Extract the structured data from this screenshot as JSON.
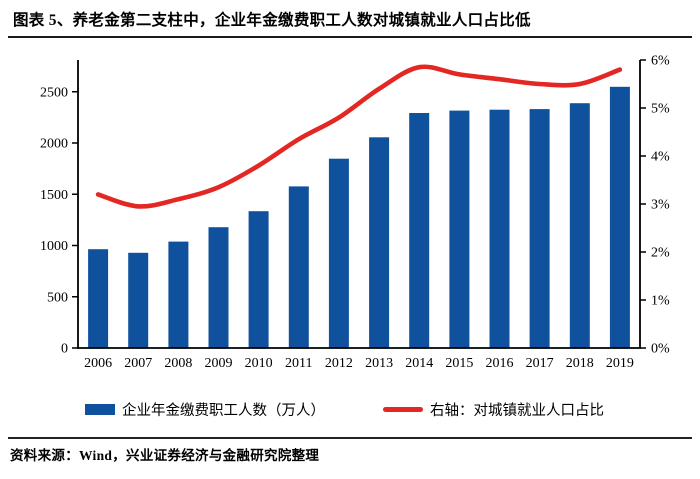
{
  "title": "图表 5、养老金第二支柱中，企业年金缴费职工人数对城镇就业人口占比低",
  "source": "资料来源：Wind，兴业证券经济与金融研究院整理",
  "legend": {
    "bar_label": "企业年金缴费职工人数（万人）",
    "line_label": "右轴：对城镇就业人口占比"
  },
  "colors": {
    "bar": "#10519E",
    "line": "#E32823",
    "axis": "#000000",
    "text": "#000000"
  },
  "chart_data": {
    "type": "bar",
    "subtype": "bar-line-combo",
    "categories": [
      "2006",
      "2007",
      "2008",
      "2009",
      "2010",
      "2011",
      "2012",
      "2013",
      "2014",
      "2015",
      "2016",
      "2017",
      "2018",
      "2019"
    ],
    "series": [
      {
        "name": "企业年金缴费职工人数（万人）",
        "type": "bar",
        "axis": "left",
        "color": "#10519E",
        "values": [
          964,
          929,
          1038,
          1179,
          1335,
          1577,
          1847,
          2056,
          2293,
          2316,
          2325,
          2331,
          2388,
          2548
        ]
      },
      {
        "name": "右轴：对城镇就业人口占比",
        "type": "line",
        "axis": "right",
        "unit": "%",
        "color": "#E32823",
        "values": [
          3.2,
          2.95,
          3.1,
          3.35,
          3.8,
          4.35,
          4.8,
          5.4,
          5.85,
          5.7,
          5.6,
          5.5,
          5.5,
          5.8
        ]
      }
    ],
    "left_axis": {
      "ticks": [
        0,
        500,
        1000,
        1500,
        2000,
        2500
      ],
      "range": [
        0,
        2810
      ]
    },
    "right_axis": {
      "ticks": [
        "0%",
        "1%",
        "2%",
        "3%",
        "4%",
        "5%",
        "6%"
      ],
      "range": [
        0,
        6
      ]
    },
    "grid": false,
    "legend_position": "bottom"
  }
}
